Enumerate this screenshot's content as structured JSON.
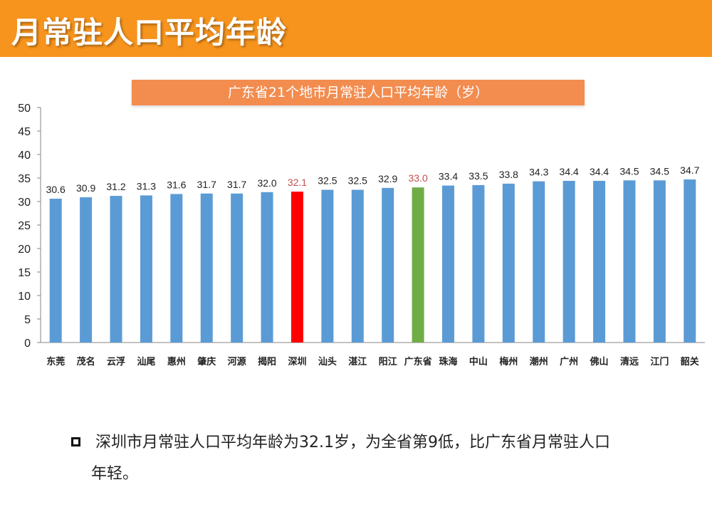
{
  "page": {
    "title": "月常驻人口平均年龄",
    "summary_line1": "深圳市月常驻人口平均年龄为32.1岁，为全省第9低，比广东省月常驻人口",
    "summary_line2": "年轻。"
  },
  "colors": {
    "header": "#f7941d",
    "banner": "#f28c4f",
    "bar_default": "#5b9bd5",
    "bar_shenzhen": "#ff0000",
    "bar_province": "#70ad47",
    "label_highlight": "#c0504d"
  },
  "chart_data": {
    "type": "bar",
    "title": "广东省21个地市月常驻人口平均年龄（岁）",
    "categories": [
      "东莞",
      "茂名",
      "云浮",
      "汕尾",
      "惠州",
      "肇庆",
      "河源",
      "揭阳",
      "深圳",
      "汕头",
      "湛江",
      "阳江",
      "广东省",
      "珠海",
      "中山",
      "梅州",
      "潮州",
      "广州",
      "佛山",
      "清远",
      "江门",
      "韶关"
    ],
    "values": [
      30.6,
      30.9,
      31.2,
      31.3,
      31.6,
      31.7,
      31.7,
      32.0,
      32.1,
      32.5,
      32.5,
      32.9,
      33.0,
      33.4,
      33.5,
      33.8,
      34.3,
      34.4,
      34.4,
      34.5,
      34.5,
      34.7
    ],
    "value_labels": [
      "30.6",
      "30.9",
      "31.2",
      "31.3",
      "31.6",
      "31.7",
      "31.7",
      "32.0",
      "32.1",
      "32.5",
      "32.5",
      "32.9",
      "33.0",
      "33.4",
      "33.5",
      "33.8",
      "34.3",
      "34.4",
      "34.4",
      "34.5",
      "34.5",
      "34.7"
    ],
    "highlights": {
      "深圳": "bar_shenzhen",
      "广东省": "bar_province"
    },
    "ylim": [
      0,
      50
    ],
    "yticks": [
      0,
      5,
      10,
      15,
      20,
      25,
      30,
      35,
      40,
      45,
      50
    ],
    "xlabel": "",
    "ylabel": "",
    "grid": false,
    "legend": "none"
  }
}
